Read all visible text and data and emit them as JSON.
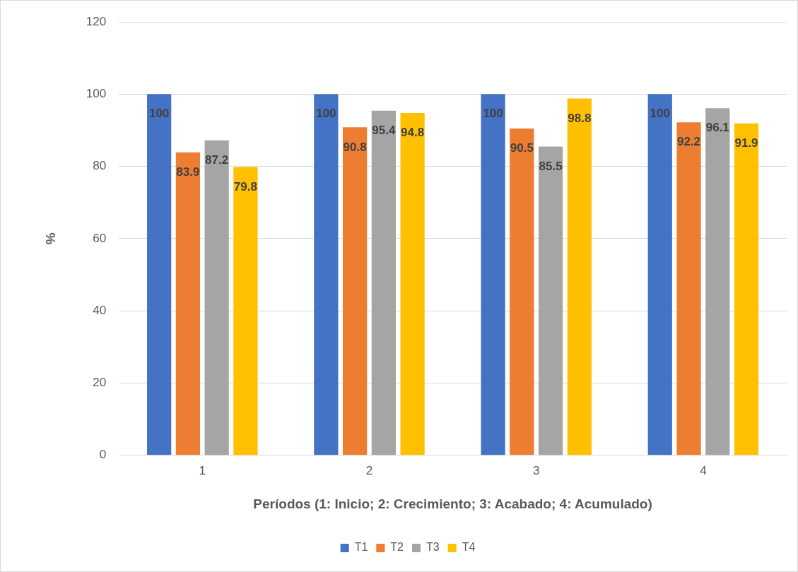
{
  "chart_data": {
    "type": "bar",
    "xlabel": "Períodos (1: Inicio; 2: Crecimiento; 3: Acabado; 4: Acumulado)",
    "ylabel": "%",
    "categories": [
      "1",
      "2",
      "3",
      "4"
    ],
    "series": [
      {
        "name": "T1",
        "color": "#4472c4",
        "values": [
          100,
          100,
          100,
          100
        ]
      },
      {
        "name": "T2",
        "color": "#ed7d31",
        "values": [
          83.9,
          90.8,
          90.5,
          92.2
        ]
      },
      {
        "name": "T3",
        "color": "#a5a5a5",
        "values": [
          87.2,
          95.4,
          85.5,
          96.1
        ]
      },
      {
        "name": "T4",
        "color": "#ffc000",
        "values": [
          79.8,
          94.8,
          98.8,
          91.9
        ]
      }
    ],
    "ylim": [
      0,
      120
    ],
    "yticks": [
      0,
      20,
      40,
      60,
      80,
      100,
      120
    ],
    "grid": "y",
    "legend": "bottom",
    "data_labels": true
  }
}
